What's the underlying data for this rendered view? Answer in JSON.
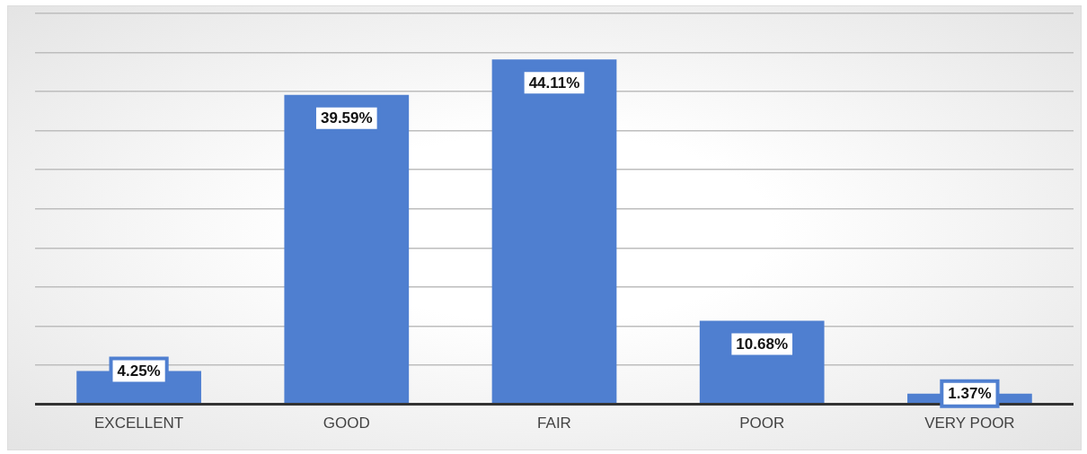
{
  "chart_data": {
    "type": "bar",
    "categories": [
      "EXCELLENT",
      "GOOD",
      "FAIR",
      "POOR",
      "VERY POOR"
    ],
    "values": [
      4.25,
      39.59,
      44.11,
      10.68,
      1.37
    ],
    "value_labels": [
      "4.25%",
      "39.59%",
      "44.11%",
      "10.68%",
      "1.37%"
    ],
    "color": "#4f7fd0",
    "ylim": [
      0,
      50
    ],
    "yticks": [
      {
        "value": 0,
        "label": null
      },
      {
        "value": 5,
        "label": null
      },
      {
        "value": 10,
        "label": null
      },
      {
        "value": 15,
        "label": null
      },
      {
        "value": 20,
        "label": null
      },
      {
        "value": 25,
        "label": null
      },
      {
        "value": 30,
        "label": null
      },
      {
        "value": 35,
        "label": null
      },
      {
        "value": 40,
        "label": null
      },
      {
        "value": 45,
        "label": null
      },
      {
        "value": 50,
        "label": null
      }
    ],
    "grid": "y",
    "tick_labels": "x",
    "legend": false
  }
}
